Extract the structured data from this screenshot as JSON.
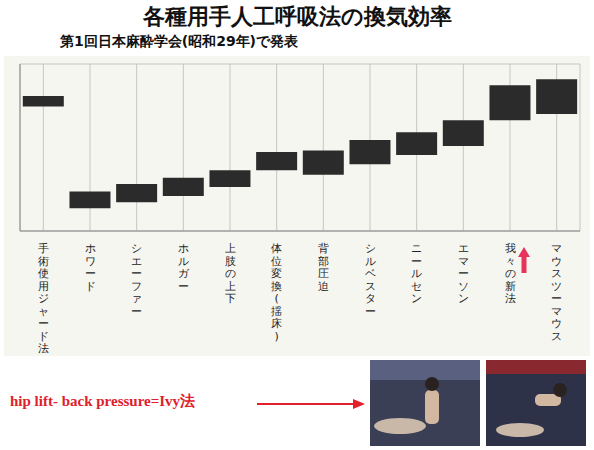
{
  "chart_data": {
    "type": "bar",
    "title": "各種用手人工呼吸法の換気効率",
    "subtitle": "第1回日本麻酔学会(昭和29年)で発表",
    "categories": [
      "手術使用ジャード法",
      "ホワード",
      "シエーファー",
      "ホルガー",
      "上肢の上下",
      "体位変換(揺床)",
      "背部圧迫",
      "シルベスター",
      "ニールセン",
      "エマーソン",
      "我々の新法",
      "マウスツーマウス"
    ],
    "values": [
      [
        8.2,
        8.9
      ],
      [
        1.5,
        2.6
      ],
      [
        1.9,
        3.1
      ],
      [
        2.3,
        3.5
      ],
      [
        2.9,
        4.0
      ],
      [
        4.0,
        5.2
      ],
      [
        3.7,
        5.3
      ],
      [
        4.4,
        6.0
      ],
      [
        5.0,
        6.5
      ],
      [
        5.6,
        7.3
      ],
      [
        7.3,
        9.6
      ],
      [
        7.7,
        10.0
      ]
    ],
    "color": "#2b2b2b",
    "ylim": [
      0,
      11
    ],
    "yticks": [
      0,
      1,
      2,
      3,
      4,
      5,
      6,
      7,
      8,
      9,
      10,
      11
    ],
    "grid": true,
    "tick_labels": "x",
    "annotations": [
      "hip lift- back pressure=Ivy法"
    ]
  }
}
